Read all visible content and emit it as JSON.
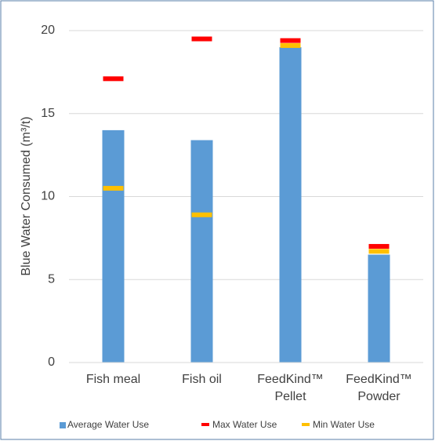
{
  "chart_data": {
    "type": "bar",
    "y_label": "Blue Water Consumed (m³/t)",
    "categories": [
      "Fish meal",
      "Fish oil",
      "FeedKind™ Pellet",
      "FeedKind™ Powder"
    ],
    "series": [
      {
        "name": "Average Water Use",
        "color": "#5b9bd5",
        "values": [
          14.0,
          13.4,
          19.0,
          6.5
        ],
        "mark": "bar"
      },
      {
        "name": "Max Water Use",
        "color": "#ff0000",
        "values": [
          17.1,
          19.5,
          19.4,
          7.0
        ],
        "mark": "dash"
      },
      {
        "name": "Min Water Use",
        "color": "#ffc000",
        "values": [
          10.5,
          8.9,
          19.1,
          6.7
        ],
        "mark": "dash"
      }
    ],
    "ylim": [
      0,
      20
    ],
    "yticks": [
      0,
      5,
      10,
      15,
      20
    ],
    "grid": true
  }
}
